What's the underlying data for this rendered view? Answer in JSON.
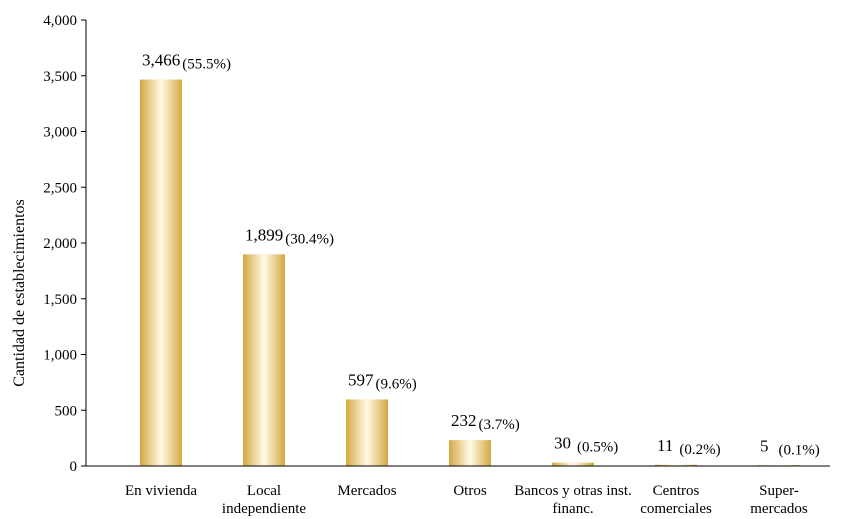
{
  "chart_data": {
    "type": "bar",
    "title": "",
    "xlabel": "",
    "ylabel": "Cantidad de establecimientos",
    "ylim": [
      0,
      4000
    ],
    "yticks": [
      "0",
      "500",
      "1,000",
      "1,500",
      "2,000",
      "2,500",
      "3,000",
      "3,500",
      "4,000"
    ],
    "ytick_values": [
      0,
      500,
      1000,
      1500,
      2000,
      2500,
      3000,
      3500,
      4000
    ],
    "grid": false,
    "bar_color": "#d4a843",
    "bar_highlight": "#fffbe8",
    "categories": [
      [
        "En vivienda"
      ],
      [
        "Local",
        "independiente"
      ],
      [
        "Mercados"
      ],
      [
        "Otros"
      ],
      [
        "Bancos y otras inst.",
        "financ."
      ],
      [
        "Centros",
        "comerciales"
      ],
      [
        "Super-",
        "mercados"
      ]
    ],
    "values": [
      3466,
      1899,
      597,
      232,
      30,
      11,
      5
    ],
    "value_labels": [
      "3,466",
      "1,899",
      "597",
      "232",
      "30",
      "11",
      "5"
    ],
    "percent_labels": [
      "(55.5%)",
      "(30.4%)",
      "(9.6%)",
      "(3.7%)",
      "(0.5%)",
      "(0.2%)",
      "(0.1%)"
    ]
  }
}
